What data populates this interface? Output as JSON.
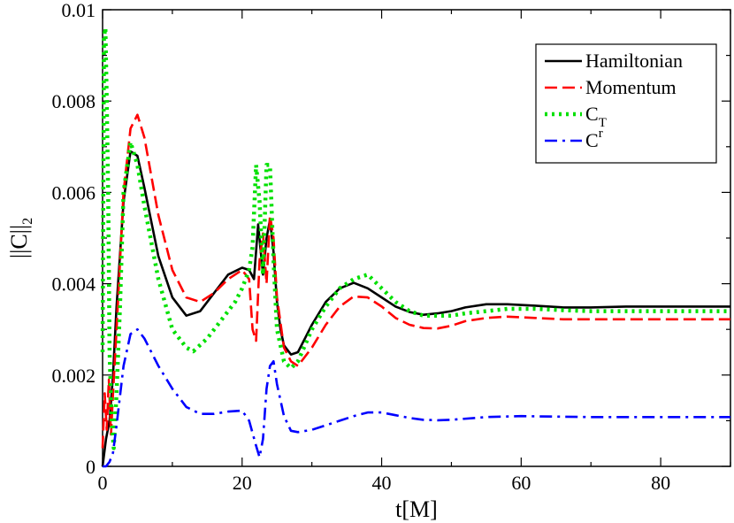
{
  "chart_data": {
    "type": "line",
    "xlabel": "t[M]",
    "ylabel": "||C||",
    "ylabel_subscript": "2",
    "xlim": [
      0,
      90
    ],
    "ylim": [
      0,
      0.01
    ],
    "xticks": [
      0,
      20,
      40,
      60,
      80
    ],
    "xtick_labels": [
      "0",
      "20",
      "40",
      "60",
      "80"
    ],
    "yticks": [
      0,
      0.002,
      0.004,
      0.006,
      0.008,
      0.01
    ],
    "ytick_labels": [
      "0",
      "0.002",
      "0.004",
      "0.006",
      "0.008",
      "0.01"
    ],
    "legend_position": "top-right",
    "series": [
      {
        "name": "Hamiltonian",
        "legend_base": "Hamiltonian",
        "legend_sup": "",
        "legend_sub": "",
        "color": "#000000",
        "style": "solid",
        "x": [
          0,
          0.5,
          1,
          1.5,
          2,
          3,
          4,
          5,
          6,
          8,
          10,
          12,
          14,
          16,
          18,
          20,
          21,
          21.7,
          22.3,
          23,
          23.5,
          24,
          24.5,
          25,
          25.5,
          26,
          27,
          28,
          30,
          32,
          34,
          36,
          38,
          40,
          42,
          44,
          46,
          48,
          50,
          52,
          55,
          58,
          62,
          66,
          70,
          75,
          80,
          85,
          90
        ],
        "y": [
          0,
          0.0006,
          0.001,
          0.002,
          0.0035,
          0.0058,
          0.0069,
          0.0068,
          0.0061,
          0.0046,
          0.0037,
          0.0033,
          0.0034,
          0.0038,
          0.0042,
          0.00435,
          0.0043,
          0.0041,
          0.0053,
          0.0042,
          0.005,
          0.0054,
          0.0047,
          0.0036,
          0.003,
          0.00265,
          0.00245,
          0.0025,
          0.0031,
          0.0036,
          0.0039,
          0.00402,
          0.0039,
          0.0037,
          0.0035,
          0.00338,
          0.00332,
          0.00335,
          0.0034,
          0.00348,
          0.00355,
          0.00355,
          0.00352,
          0.00348,
          0.00348,
          0.0035,
          0.0035,
          0.0035,
          0.0035
        ]
      },
      {
        "name": "Momentum",
        "legend_base": "Momentum",
        "legend_sup": "",
        "legend_sub": "",
        "color": "#ff0000",
        "style": "dashed",
        "x": [
          0,
          0.3,
          0.6,
          0.9,
          1.2,
          1.5,
          2,
          3,
          4,
          5,
          6,
          8,
          10,
          12,
          14,
          16,
          18,
          20,
          21,
          21.5,
          22,
          22.5,
          23,
          23.5,
          24,
          24.5,
          25,
          26,
          27,
          28,
          30,
          32,
          34,
          36,
          38,
          40,
          42,
          44,
          46,
          48,
          50,
          52,
          55,
          58,
          62,
          66,
          70,
          75,
          80,
          85,
          90
        ],
        "y": [
          0.0004,
          0.0016,
          0.0008,
          0.0019,
          0.0007,
          0.0016,
          0.003,
          0.006,
          0.0074,
          0.0077,
          0.0072,
          0.0055,
          0.0043,
          0.0037,
          0.0036,
          0.0038,
          0.0041,
          0.0043,
          0.0041,
          0.003,
          0.00275,
          0.0045,
          0.0051,
          0.004,
          0.0055,
          0.005,
          0.0037,
          0.0026,
          0.0023,
          0.0022,
          0.0026,
          0.0031,
          0.0035,
          0.00372,
          0.0037,
          0.0035,
          0.00325,
          0.0031,
          0.00303,
          0.00302,
          0.00308,
          0.00318,
          0.00325,
          0.00328,
          0.00325,
          0.00322,
          0.00322,
          0.00322,
          0.00322,
          0.00322,
          0.00322
        ]
      },
      {
        "name": "C_T",
        "legend_base": "C",
        "legend_sup": "",
        "legend_sub": "T",
        "color": "#00e000",
        "style": "dotted",
        "x": [
          0,
          0.2,
          0.4,
          0.6,
          0.8,
          1,
          1.3,
          1.6,
          2,
          2.5,
          3,
          4,
          5,
          6,
          8,
          10,
          12,
          13,
          15,
          17,
          19,
          20,
          21,
          21.5,
          22,
          22.5,
          23,
          23.5,
          24,
          24.5,
          25,
          26,
          27,
          28,
          30,
          32,
          34,
          36,
          38,
          40,
          42,
          44,
          46,
          48,
          50,
          52,
          55,
          58,
          62,
          66,
          70,
          75,
          80,
          85,
          90
        ],
        "y": [
          0.0025,
          0.0094,
          0.0096,
          0.008,
          0.006,
          0.0025,
          0.001,
          0.0004,
          0.0016,
          0.0035,
          0.006,
          0.0071,
          0.0066,
          0.0057,
          0.0041,
          0.003,
          0.0026,
          0.00252,
          0.0028,
          0.0032,
          0.0036,
          0.0039,
          0.0043,
          0.0048,
          0.0066,
          0.0058,
          0.0042,
          0.0066,
          0.0066,
          0.0045,
          0.003,
          0.0023,
          0.00215,
          0.0023,
          0.003,
          0.0035,
          0.0039,
          0.0041,
          0.0042,
          0.0039,
          0.0036,
          0.0034,
          0.0033,
          0.0033,
          0.0033,
          0.00335,
          0.0034,
          0.00345,
          0.00345,
          0.00342,
          0.0034,
          0.0034,
          0.0034,
          0.0034,
          0.0034
        ]
      },
      {
        "name": "C^r",
        "legend_base": "C",
        "legend_sup": "r",
        "legend_sub": "",
        "color": "#0000ff",
        "style": "dashdot",
        "x": [
          0,
          0.5,
          1,
          1.5,
          2,
          3,
          4,
          5,
          6,
          8,
          10,
          12,
          14,
          16,
          18,
          20,
          21,
          22,
          22.5,
          23,
          23.5,
          24,
          24.5,
          25,
          26,
          27,
          28,
          30,
          32,
          34,
          36,
          38,
          40,
          42,
          44,
          46,
          48,
          50,
          55,
          60,
          65,
          70,
          75,
          80,
          85,
          90
        ],
        "y": [
          0,
          0,
          0.0001,
          0.0003,
          0.0009,
          0.0022,
          0.0029,
          0.003,
          0.0028,
          0.0022,
          0.0017,
          0.0013,
          0.00115,
          0.00115,
          0.0012,
          0.00122,
          0.001,
          0.00045,
          0.0002,
          0.0006,
          0.0017,
          0.0022,
          0.0023,
          0.0018,
          0.0011,
          0.00078,
          0.00075,
          0.0008,
          0.0009,
          0.001,
          0.0011,
          0.00118,
          0.00118,
          0.00112,
          0.00106,
          0.00102,
          0.00101,
          0.00102,
          0.00108,
          0.0011,
          0.00109,
          0.00108,
          0.00108,
          0.00108,
          0.00108,
          0.00108
        ]
      }
    ]
  }
}
